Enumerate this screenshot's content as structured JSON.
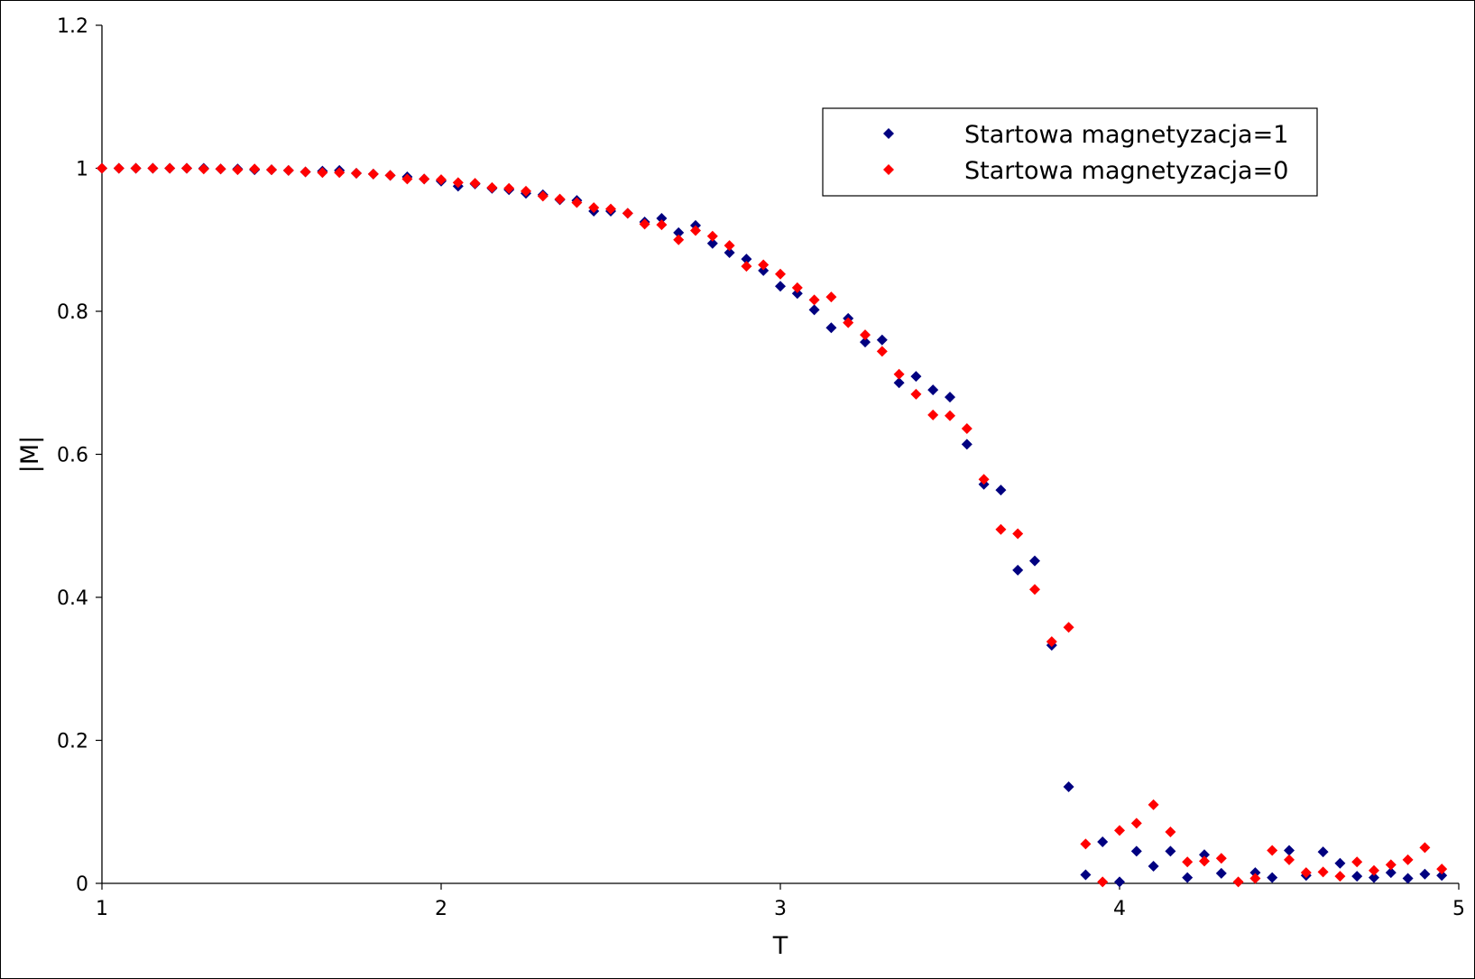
{
  "chart_data": {
    "type": "scatter",
    "title": "",
    "xlabel": "T",
    "ylabel": "|M|",
    "xlim": [
      1,
      5
    ],
    "ylim": [
      0,
      1.2
    ],
    "xticks": [
      "1",
      "2",
      "3",
      "4",
      "5"
    ],
    "yticks": [
      "0",
      "0.2",
      "0.4",
      "0.6",
      "0.8",
      "1",
      "1.2"
    ],
    "grid": false,
    "legend_position": "top-right",
    "series": [
      {
        "name": "Startowa magnetyzacja=1",
        "color": "#000080",
        "marker": "diamond",
        "points": [
          [
            1.0,
            1.0
          ],
          [
            1.05,
            1.0
          ],
          [
            1.1,
            1.0
          ],
          [
            1.15,
            1.0
          ],
          [
            1.2,
            1.0
          ],
          [
            1.25,
            1.0
          ],
          [
            1.3,
            1.0
          ],
          [
            1.35,
            0.999
          ],
          [
            1.4,
            0.999
          ],
          [
            1.45,
            0.998
          ],
          [
            1.5,
            0.998
          ],
          [
            1.55,
            0.997
          ],
          [
            1.6,
            0.995
          ],
          [
            1.65,
            0.996
          ],
          [
            1.7,
            0.997
          ],
          [
            1.75,
            0.993
          ],
          [
            1.8,
            0.992
          ],
          [
            1.85,
            0.99
          ],
          [
            1.9,
            0.988
          ],
          [
            1.95,
            0.985
          ],
          [
            2.0,
            0.982
          ],
          [
            2.05,
            0.975
          ],
          [
            2.1,
            0.978
          ],
          [
            2.15,
            0.972
          ],
          [
            2.2,
            0.97
          ],
          [
            2.25,
            0.965
          ],
          [
            2.3,
            0.963
          ],
          [
            2.35,
            0.956
          ],
          [
            2.4,
            0.955
          ],
          [
            2.45,
            0.94
          ],
          [
            2.5,
            0.94
          ],
          [
            2.55,
            0.937
          ],
          [
            2.6,
            0.925
          ],
          [
            2.65,
            0.93
          ],
          [
            2.7,
            0.91
          ],
          [
            2.75,
            0.92
          ],
          [
            2.8,
            0.895
          ],
          [
            2.85,
            0.882
          ],
          [
            2.9,
            0.873
          ],
          [
            2.95,
            0.857
          ],
          [
            3.0,
            0.835
          ],
          [
            3.05,
            0.825
          ],
          [
            3.1,
            0.802
          ],
          [
            3.15,
            0.777
          ],
          [
            3.2,
            0.79
          ],
          [
            3.25,
            0.757
          ],
          [
            3.3,
            0.76
          ],
          [
            3.35,
            0.7
          ],
          [
            3.4,
            0.709
          ],
          [
            3.45,
            0.69
          ],
          [
            3.5,
            0.68
          ],
          [
            3.55,
            0.614
          ],
          [
            3.6,
            0.558
          ],
          [
            3.65,
            0.55
          ],
          [
            3.7,
            0.438
          ],
          [
            3.75,
            0.451
          ],
          [
            3.8,
            0.333
          ],
          [
            3.85,
            0.135
          ],
          [
            3.9,
            0.012
          ],
          [
            3.95,
            0.058
          ],
          [
            4.0,
            0.002
          ],
          [
            4.05,
            0.045
          ],
          [
            4.1,
            0.024
          ],
          [
            4.15,
            0.045
          ],
          [
            4.2,
            0.008
          ],
          [
            4.25,
            0.04
          ],
          [
            4.3,
            0.014
          ],
          [
            4.4,
            0.015
          ],
          [
            4.45,
            0.008
          ],
          [
            4.5,
            0.046
          ],
          [
            4.55,
            0.011
          ],
          [
            4.6,
            0.044
          ],
          [
            4.65,
            0.028
          ],
          [
            4.7,
            0.01
          ],
          [
            4.75,
            0.008
          ],
          [
            4.8,
            0.015
          ],
          [
            4.85,
            0.007
          ],
          [
            4.9,
            0.013
          ],
          [
            4.95,
            0.011
          ]
        ]
      },
      {
        "name": "Startowa magnetyzacja=0",
        "color": "#ff0000",
        "marker": "diamond",
        "points": [
          [
            1.0,
            1.0
          ],
          [
            1.05,
            1.0
          ],
          [
            1.1,
            1.0
          ],
          [
            1.15,
            1.0
          ],
          [
            1.2,
            1.0
          ],
          [
            1.25,
            1.0
          ],
          [
            1.3,
            0.999
          ],
          [
            1.35,
            0.999
          ],
          [
            1.4,
            0.998
          ],
          [
            1.45,
            0.999
          ],
          [
            1.5,
            0.998
          ],
          [
            1.55,
            0.997
          ],
          [
            1.6,
            0.995
          ],
          [
            1.65,
            0.994
          ],
          [
            1.7,
            0.994
          ],
          [
            1.75,
            0.993
          ],
          [
            1.8,
            0.992
          ],
          [
            1.85,
            0.99
          ],
          [
            1.9,
            0.985
          ],
          [
            1.95,
            0.985
          ],
          [
            2.0,
            0.984
          ],
          [
            2.05,
            0.98
          ],
          [
            2.1,
            0.979
          ],
          [
            2.15,
            0.973
          ],
          [
            2.2,
            0.972
          ],
          [
            2.25,
            0.968
          ],
          [
            2.3,
            0.961
          ],
          [
            2.35,
            0.957
          ],
          [
            2.4,
            0.952
          ],
          [
            2.45,
            0.945
          ],
          [
            2.5,
            0.943
          ],
          [
            2.55,
            0.937
          ],
          [
            2.6,
            0.922
          ],
          [
            2.65,
            0.921
          ],
          [
            2.7,
            0.9
          ],
          [
            2.75,
            0.913
          ],
          [
            2.8,
            0.905
          ],
          [
            2.85,
            0.892
          ],
          [
            2.9,
            0.863
          ],
          [
            2.95,
            0.865
          ],
          [
            3.0,
            0.852
          ],
          [
            3.05,
            0.833
          ],
          [
            3.1,
            0.816
          ],
          [
            3.15,
            0.82
          ],
          [
            3.2,
            0.784
          ],
          [
            3.25,
            0.767
          ],
          [
            3.3,
            0.744
          ],
          [
            3.35,
            0.712
          ],
          [
            3.4,
            0.684
          ],
          [
            3.45,
            0.655
          ],
          [
            3.5,
            0.654
          ],
          [
            3.55,
            0.636
          ],
          [
            3.6,
            0.565
          ],
          [
            3.65,
            0.495
          ],
          [
            3.7,
            0.489
          ],
          [
            3.75,
            0.411
          ],
          [
            3.8,
            0.338
          ],
          [
            3.85,
            0.358
          ],
          [
            3.9,
            0.055
          ],
          [
            3.95,
            0.002
          ],
          [
            4.0,
            0.074
          ],
          [
            4.05,
            0.084
          ],
          [
            4.1,
            0.11
          ],
          [
            4.15,
            0.072
          ],
          [
            4.2,
            0.03
          ],
          [
            4.25,
            0.031
          ],
          [
            4.3,
            0.035
          ],
          [
            4.35,
            0.002
          ],
          [
            4.4,
            0.007
          ],
          [
            4.45,
            0.046
          ],
          [
            4.5,
            0.033
          ],
          [
            4.55,
            0.015
          ],
          [
            4.6,
            0.016
          ],
          [
            4.65,
            0.01
          ],
          [
            4.7,
            0.03
          ],
          [
            4.75,
            0.018
          ],
          [
            4.8,
            0.026
          ],
          [
            4.85,
            0.033
          ],
          [
            4.9,
            0.05
          ],
          [
            4.95,
            0.02
          ]
        ]
      }
    ]
  }
}
